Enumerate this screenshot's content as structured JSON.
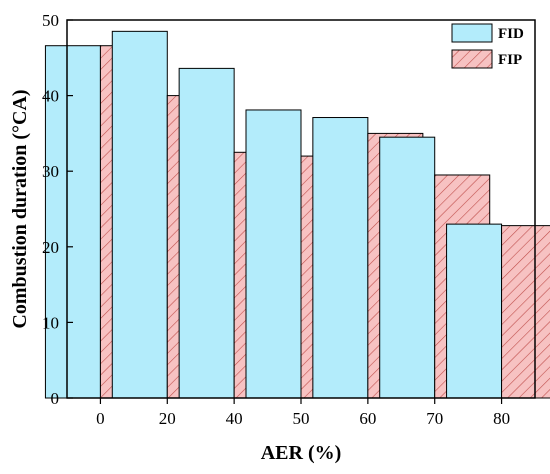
{
  "chart_data": {
    "type": "bar",
    "categories": [
      "0",
      "20",
      "40",
      "50",
      "60",
      "70",
      "80"
    ],
    "series": [
      {
        "name": "FID",
        "values": [
          46.6,
          48.5,
          43.6,
          38.1,
          37.1,
          34.5,
          23.0
        ],
        "color": "#b3ecfb",
        "pattern": "solid"
      },
      {
        "name": "FIP",
        "values": [
          46.6,
          40.0,
          32.5,
          32.0,
          35.0,
          29.5,
          22.8
        ],
        "color": "#f7c2c2",
        "pattern": "hatch",
        "hatch_color": "#c0504d"
      }
    ],
    "xlabel": "AER (%)",
    "ylabel": "Combustion duration (°CA)",
    "ylim": [
      0,
      50
    ],
    "yticks": [
      0,
      10,
      20,
      30,
      40,
      50
    ],
    "legend": "top-right",
    "grid": false
  }
}
